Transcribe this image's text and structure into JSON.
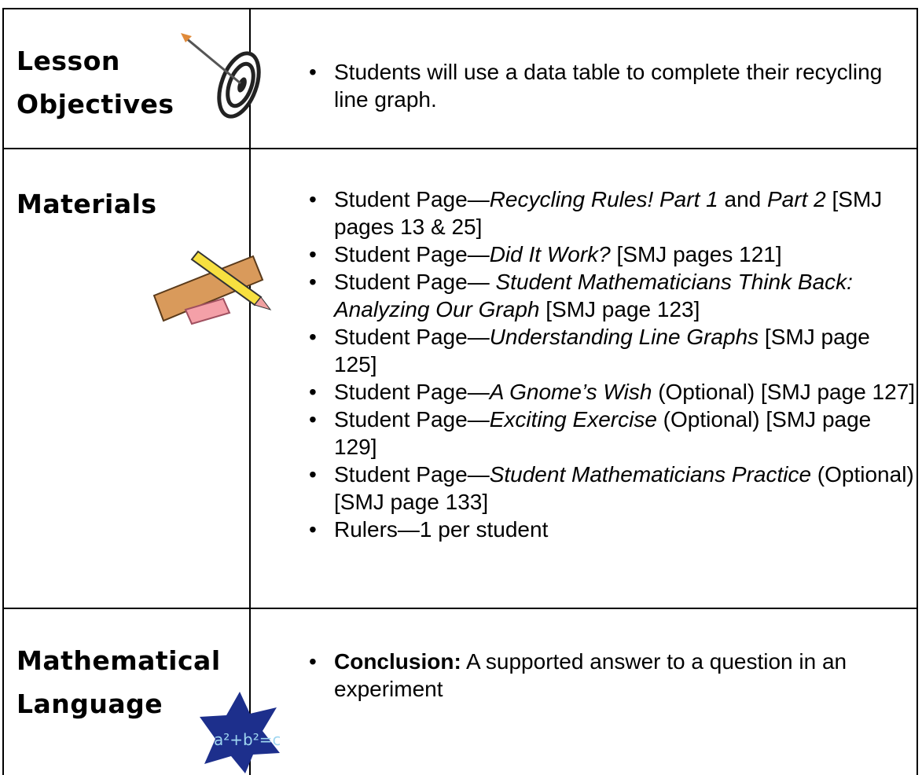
{
  "table": {
    "rows": [
      {
        "heading": [
          "Lesson",
          "Objectives"
        ],
        "items": [
          [
            {
              "text": "Students will use a data table to complete their recycling line graph."
            }
          ]
        ]
      },
      {
        "heading": [
          "Materials"
        ],
        "items": [
          [
            {
              "text": "Student Page—"
            },
            {
              "text": "Recycling Rules! Part 1",
              "style": "italic"
            },
            {
              "text": " and "
            },
            {
              "text": "Part 2",
              "style": "italic"
            },
            {
              "text": " [SMJ pages 13 & 25]"
            }
          ],
          [
            {
              "text": "Student Page—"
            },
            {
              "text": "Did It Work?",
              "style": "italic"
            },
            {
              "text": " [SMJ pages 121]"
            }
          ],
          [
            {
              "text": "Student Page— "
            },
            {
              "text": "Student Mathematicians Think Back: Analyzing Our Graph",
              "style": "italic"
            },
            {
              "text": " [SMJ page 123]"
            }
          ],
          [
            {
              "text": "Student Page—"
            },
            {
              "text": "Understanding Line Graphs",
              "style": "italic"
            },
            {
              "text": " [SMJ page 125]"
            }
          ],
          [
            {
              "text": "Student Page—"
            },
            {
              "text": "A Gnome’s Wish",
              "style": "italic"
            },
            {
              "text": " (Optional) [SMJ page 127]"
            }
          ],
          [
            {
              "text": "Student Page—"
            },
            {
              "text": "Exciting Exercise",
              "style": "italic"
            },
            {
              "text": " (Optional) [SMJ page 129]"
            }
          ],
          [
            {
              "text": "Student Page—"
            },
            {
              "text": "Student Mathematicians Practice",
              "style": "italic"
            },
            {
              "text": " (Optional) [SMJ page 133]"
            }
          ],
          [
            {
              "text": "Rulers—1 per student"
            }
          ]
        ]
      },
      {
        "heading": [
          "Mathematical",
          "Language"
        ],
        "items": [
          [
            {
              "text": "Conclusion:",
              "style": "bold"
            },
            {
              "text": " A supported answer to a question in an experiment"
            }
          ]
        ]
      }
    ]
  }
}
